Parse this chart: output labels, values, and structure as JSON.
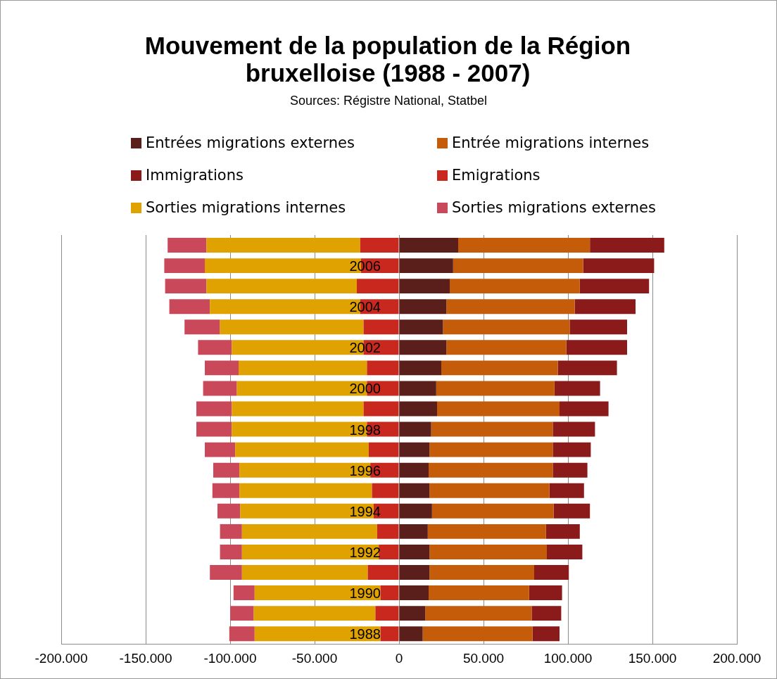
{
  "chart_data": {
    "type": "bar",
    "orientation": "horizontal",
    "stacked": true,
    "title": "Mouvement de la population de la Région bruxelloise (1988 - 2007)",
    "subtitle": "Sources: Régistre National, Statbel",
    "categories": [
      null,
      "2006",
      null,
      "2004",
      null,
      "2002",
      null,
      "2000",
      null,
      "1998",
      null,
      "1996",
      null,
      "1994",
      null,
      "1992",
      null,
      "1990",
      null,
      "1988"
    ],
    "series": [
      {
        "name": "Entrées migrations externes",
        "color": "#5a1f1b",
        "values": [
          35000,
          32000,
          30000,
          28000,
          26000,
          28000,
          25000,
          22000,
          22500,
          19000,
          18000,
          17500,
          18000,
          19500,
          17000,
          18000,
          18000,
          17500,
          15500,
          14000
        ]
      },
      {
        "name": "Entrée migrations internes",
        "color": "#c45c0a",
        "values": [
          78000,
          77000,
          77000,
          76000,
          75000,
          71000,
          69000,
          70000,
          72500,
          72000,
          73000,
          73500,
          71000,
          72000,
          70000,
          69500,
          62000,
          59500,
          63000,
          65000
        ]
      },
      {
        "name": "Immigrations",
        "color": "#8b1a1a",
        "values": [
          44000,
          42000,
          41000,
          36000,
          34000,
          36000,
          35000,
          27000,
          29000,
          25000,
          22500,
          20500,
          20500,
          21500,
          20000,
          21000,
          20500,
          19500,
          17500,
          16000
        ]
      },
      {
        "name": "Emigrations",
        "color": "#c8281e",
        "values": [
          -23000,
          -22500,
          -25000,
          -23000,
          -21000,
          -21000,
          -19000,
          -19000,
          -21000,
          -19000,
          -18000,
          -17000,
          -16000,
          -15000,
          -13000,
          -12000,
          -18500,
          -11000,
          -14000,
          -11000
        ]
      },
      {
        "name": "Sorties migrations internes",
        "color": "#e0a200",
        "values": [
          -91000,
          -92500,
          -89000,
          -89000,
          -85000,
          -78000,
          -76000,
          -77000,
          -78000,
          -80000,
          -79000,
          -77500,
          -78500,
          -79000,
          -80000,
          -81000,
          -74500,
          -74500,
          -72000,
          -74500
        ]
      },
      {
        "name": "Sorties migrations externes",
        "color": "#c9495a",
        "values": [
          -23000,
          -24000,
          -24500,
          -24000,
          -21000,
          -20000,
          -20000,
          -20000,
          -21000,
          -21000,
          -18000,
          -15500,
          -16000,
          -13500,
          -13000,
          -13000,
          -19000,
          -12500,
          -14000,
          -15000
        ]
      }
    ],
    "xlim": [
      -200000,
      200000
    ],
    "xticks": [
      {
        "value": -200000,
        "label": "-200.000"
      },
      {
        "value": -150000,
        "label": "-150.000"
      },
      {
        "value": -100000,
        "label": "-100.000"
      },
      {
        "value": -50000,
        "label": "-50.000"
      },
      0,
      {
        "value": 50000,
        "label": "50.000"
      },
      {
        "value": 100000,
        "label": "100.000"
      },
      {
        "value": 150000,
        "label": "150.000"
      },
      {
        "value": 200000,
        "label": "200.000"
      }
    ],
    "grid": "x",
    "legend": "top"
  }
}
